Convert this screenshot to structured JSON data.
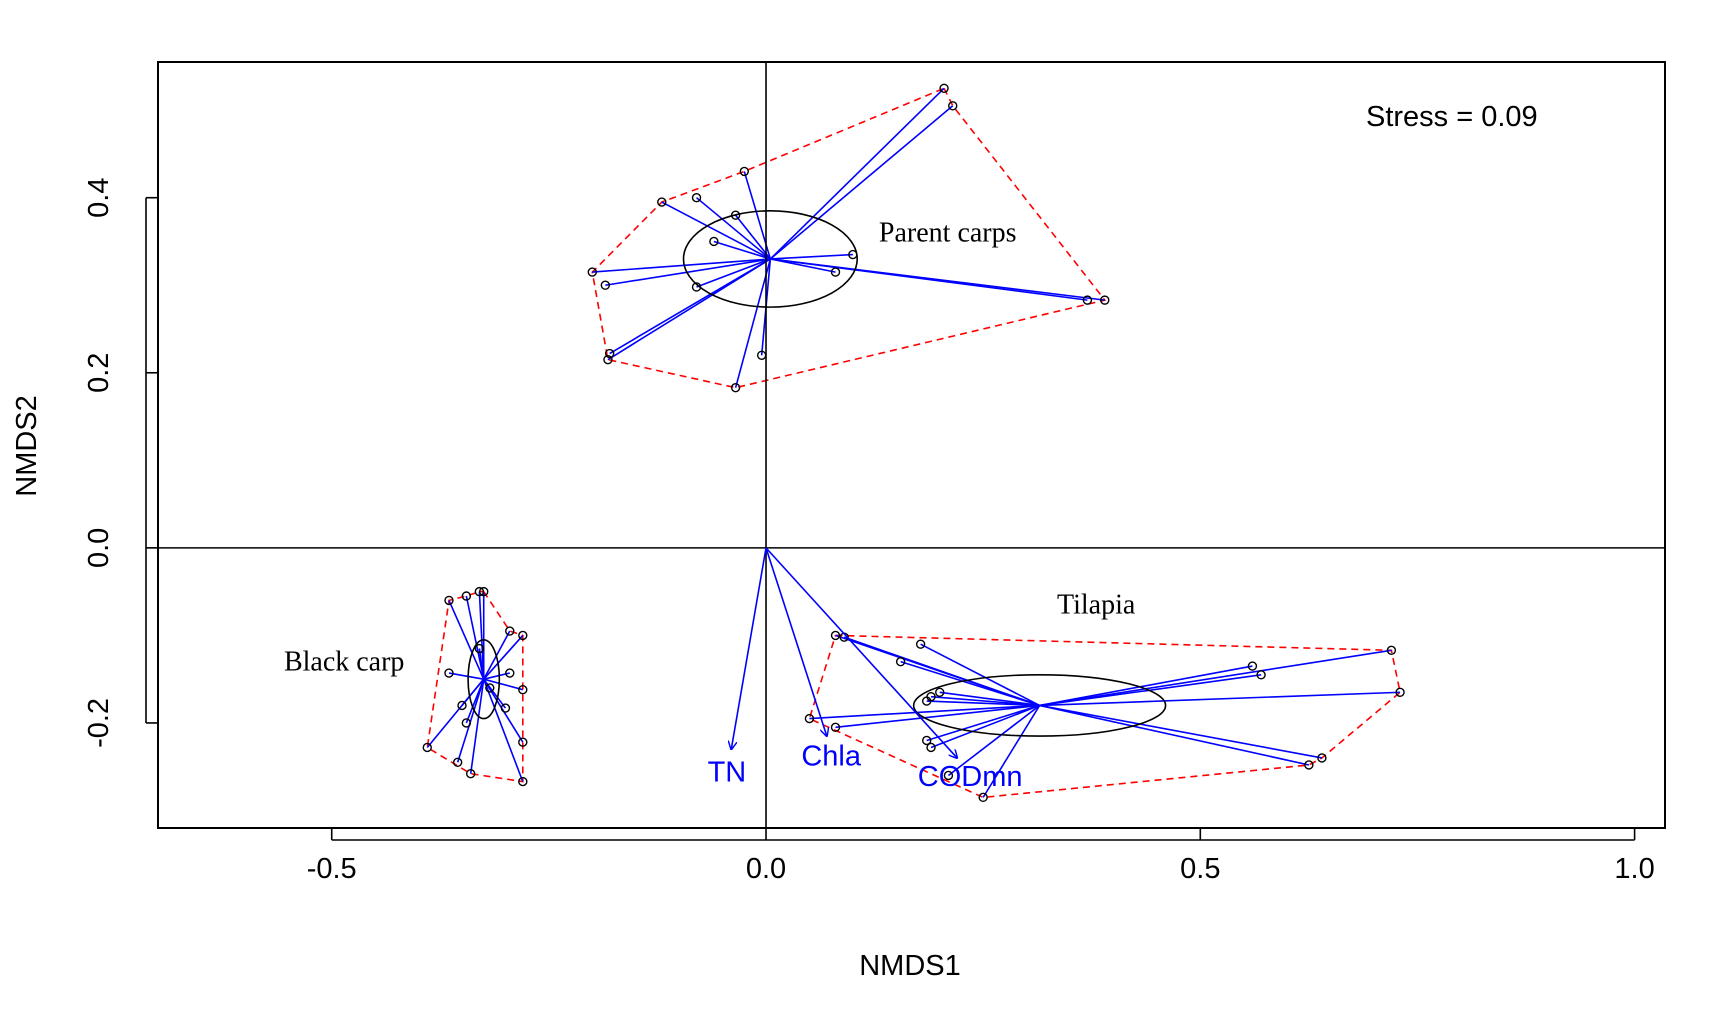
{
  "chart_data": {
    "type": "scatter",
    "xlabel": "NMDS1",
    "ylabel": "NMDS2",
    "xlim": [
      -0.7,
      1.035
    ],
    "ylim": [
      -0.32,
      0.555
    ],
    "xticks": [
      -0.5,
      0.0,
      0.5,
      1.0
    ],
    "xtick_labels": [
      "-0.5",
      "0.0",
      "0.5",
      "1.0"
    ],
    "yticks": [
      -0.2,
      0.0,
      0.2,
      0.4
    ],
    "ytick_labels": [
      "-0.2",
      "0.0",
      "0.2",
      "0.4"
    ],
    "stress_label": "Stress = 0.09",
    "origin_lines": true,
    "colors": {
      "spider": "#0000ff",
      "hull": "#ff0000",
      "ellipse": "#000000",
      "points": "#000000",
      "vectors": "#0000ff"
    },
    "groups": [
      {
        "label": "Parent carps",
        "label_pos": [
          0.13,
          0.35
        ],
        "centroid": [
          0.005,
          0.33
        ],
        "ellipse": {
          "rx": 0.1,
          "ry": 0.055
        },
        "points": [
          [
            0.205,
            0.525
          ],
          [
            0.215,
            0.505
          ],
          [
            -0.025,
            0.43
          ],
          [
            -0.12,
            0.395
          ],
          [
            -0.08,
            0.4
          ],
          [
            -0.035,
            0.38
          ],
          [
            -0.06,
            0.35
          ],
          [
            0.1,
            0.335
          ],
          [
            0.08,
            0.315
          ],
          [
            -0.2,
            0.315
          ],
          [
            -0.185,
            0.3
          ],
          [
            -0.08,
            0.298
          ],
          [
            0.37,
            0.283
          ],
          [
            0.39,
            0.283
          ],
          [
            -0.18,
            0.222
          ],
          [
            -0.182,
            0.215
          ],
          [
            -0.005,
            0.22
          ],
          [
            -0.035,
            0.183
          ]
        ],
        "hull": [
          [
            0.205,
            0.525
          ],
          [
            0.215,
            0.505
          ],
          [
            0.39,
            0.283
          ],
          [
            -0.035,
            0.183
          ],
          [
            -0.182,
            0.215
          ],
          [
            -0.2,
            0.315
          ],
          [
            -0.12,
            0.395
          ],
          [
            -0.025,
            0.43
          ],
          [
            0.205,
            0.525
          ]
        ]
      },
      {
        "label": "Black carp",
        "label_pos": [
          -0.555,
          -0.14
        ],
        "centroid": [
          -0.325,
          -0.15
        ],
        "ellipse": {
          "rx": 0.018,
          "ry": 0.045
        },
        "points": [
          [
            -0.33,
            -0.05
          ],
          [
            -0.325,
            -0.05
          ],
          [
            -0.345,
            -0.055
          ],
          [
            -0.365,
            -0.06
          ],
          [
            -0.295,
            -0.095
          ],
          [
            -0.28,
            -0.1
          ],
          [
            -0.33,
            -0.115
          ],
          [
            -0.365,
            -0.143
          ],
          [
            -0.295,
            -0.143
          ],
          [
            -0.318,
            -0.16
          ],
          [
            -0.28,
            -0.162
          ],
          [
            -0.3,
            -0.183
          ],
          [
            -0.35,
            -0.18
          ],
          [
            -0.345,
            -0.2
          ],
          [
            -0.39,
            -0.228
          ],
          [
            -0.28,
            -0.222
          ],
          [
            -0.355,
            -0.245
          ],
          [
            -0.34,
            -0.258
          ],
          [
            -0.28,
            -0.267
          ]
        ],
        "hull": [
          [
            -0.325,
            -0.05
          ],
          [
            -0.295,
            -0.095
          ],
          [
            -0.28,
            -0.1
          ],
          [
            -0.28,
            -0.267
          ],
          [
            -0.34,
            -0.258
          ],
          [
            -0.39,
            -0.228
          ],
          [
            -0.365,
            -0.06
          ],
          [
            -0.345,
            -0.055
          ],
          [
            -0.33,
            -0.05
          ],
          [
            -0.325,
            -0.05
          ]
        ]
      },
      {
        "label": "Tilapia",
        "label_pos": [
          0.335,
          -0.075
        ],
        "centroid": [
          0.315,
          -0.18
        ],
        "ellipse": {
          "rx": 0.145,
          "ry": 0.035
        },
        "points": [
          [
            0.08,
            -0.1
          ],
          [
            0.09,
            -0.102
          ],
          [
            0.178,
            -0.11
          ],
          [
            0.155,
            -0.13
          ],
          [
            0.72,
            -0.117
          ],
          [
            0.56,
            -0.135
          ],
          [
            0.57,
            -0.145
          ],
          [
            0.2,
            -0.165
          ],
          [
            0.19,
            -0.17
          ],
          [
            0.185,
            -0.175
          ],
          [
            0.73,
            -0.165
          ],
          [
            0.05,
            -0.195
          ],
          [
            0.08,
            -0.205
          ],
          [
            0.185,
            -0.22
          ],
          [
            0.19,
            -0.228
          ],
          [
            0.64,
            -0.24
          ],
          [
            0.625,
            -0.248
          ],
          [
            0.21,
            -0.26
          ],
          [
            0.25,
            -0.285
          ]
        ],
        "hull": [
          [
            0.08,
            -0.1
          ],
          [
            0.72,
            -0.117
          ],
          [
            0.73,
            -0.165
          ],
          [
            0.64,
            -0.24
          ],
          [
            0.625,
            -0.248
          ],
          [
            0.25,
            -0.285
          ],
          [
            0.05,
            -0.195
          ],
          [
            0.08,
            -0.1
          ]
        ]
      }
    ],
    "vectors": [
      {
        "label": "TN",
        "end": [
          -0.04,
          -0.23
        ],
        "label_pos": [
          -0.045,
          -0.258
        ]
      },
      {
        "label": "Chla",
        "end": [
          0.07,
          -0.215
        ],
        "label_pos": [
          0.075,
          -0.24
        ]
      },
      {
        "label": "CODmn",
        "end": [
          0.22,
          -0.24
        ],
        "label_pos": [
          0.235,
          -0.263
        ]
      }
    ]
  }
}
